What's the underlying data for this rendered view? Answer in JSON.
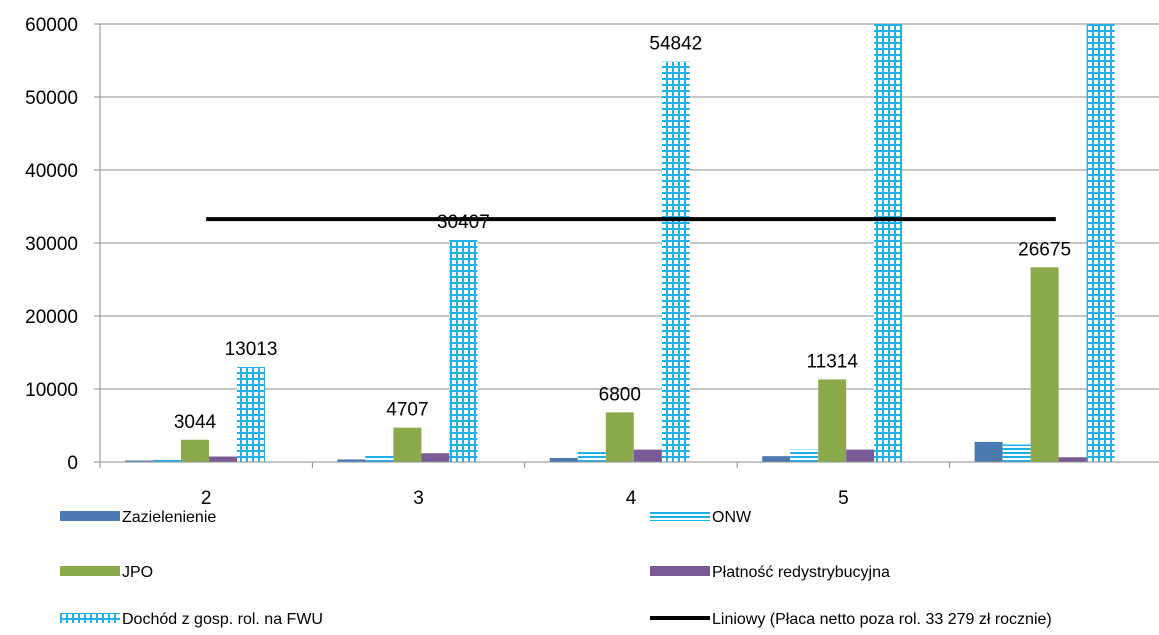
{
  "chart_data": {
    "type": "bar",
    "categories": [
      "2",
      "3",
      "4",
      "5",
      ""
    ],
    "ylim": [
      0,
      60000
    ],
    "yticks": [
      0,
      10000,
      20000,
      30000,
      40000,
      50000,
      60000
    ],
    "grid": "horizontal",
    "legend_position": "bottom",
    "colors": {
      "zazielenienie": "#4a7ab0",
      "onw": "#20b0e8",
      "jpo": "#8aaa4c",
      "redystrybucyjna": "#7a5a94",
      "dochod": "#22b0ea",
      "liniowy": "#000000"
    },
    "series": [
      {
        "key": "zazielenienie",
        "name": "Zazielenienie",
        "pattern": "solid",
        "values": [
          200,
          350,
          550,
          800,
          2750
        ]
      },
      {
        "key": "onw",
        "name": "ONW",
        "pattern": "hlines",
        "values": [
          500,
          1100,
          1500,
          1700,
          2400
        ]
      },
      {
        "key": "jpo",
        "name": "JPO",
        "pattern": "solid",
        "values": [
          3044,
          4707,
          6800,
          11314,
          26675
        ],
        "labels": [
          "3044",
          "4707",
          "6800",
          "11314",
          "26675"
        ]
      },
      {
        "key": "redystrybucyjna",
        "name": "Płatność redystrybucyjna",
        "pattern": "solid",
        "values": [
          750,
          1200,
          1700,
          1700,
          650
        ]
      },
      {
        "key": "dochod",
        "name": "Dochód z gosp. rol. na FWU",
        "pattern": "grid",
        "values": [
          13013,
          30407,
          54842,
          60000,
          60000
        ],
        "labels": [
          "13013",
          "30407",
          "54842",
          "",
          ""
        ]
      }
    ],
    "line": {
      "key": "liniowy",
      "name": "Liniowy (Płaca netto poza rol. 33 279 zł rocznie)",
      "value": 33279
    }
  }
}
